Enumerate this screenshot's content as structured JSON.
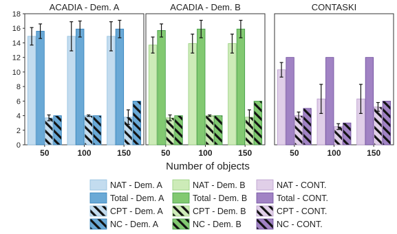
{
  "chart_data": [
    {
      "type": "bar",
      "title": "ACADIA - Dem. A",
      "categories": [
        "50",
        "100",
        "150"
      ],
      "ylim": [
        0,
        18
      ],
      "yticks": [
        0,
        2,
        4,
        6,
        8,
        10,
        12,
        14,
        16,
        18
      ],
      "series": [
        {
          "name": "NAT - Dem. A",
          "values": [
            14.9,
            14.9,
            14.9
          ],
          "err": [
            1.2,
            2.0,
            2.0
          ],
          "color": "#c3dcef",
          "edge": "#8fbfdf",
          "hatch": false
        },
        {
          "name": "Total - Dem. A",
          "values": [
            15.6,
            15.9,
            15.9
          ],
          "err": [
            1.0,
            1.1,
            1.2
          ],
          "color": "#6aa9d6",
          "edge": "#2f7fba",
          "hatch": false
        },
        {
          "name": "CPT - Dem. A",
          "values": [
            3.7,
            4.0,
            3.8
          ],
          "err": [
            0.4,
            0.1,
            1.0
          ],
          "color": "#c3dcef",
          "edge": "#8fbfdf",
          "hatch": true
        },
        {
          "name": "NC - Dem. A",
          "values": [
            4,
            4,
            6
          ],
          "err": [
            0,
            0,
            0
          ],
          "color": "#6aa9d6",
          "edge": "#2f7fba",
          "hatch": true
        }
      ]
    },
    {
      "type": "bar",
      "title": "ACADIA - Dem. B",
      "categories": [
        "50",
        "100",
        "150"
      ],
      "ylim": [
        0,
        18
      ],
      "series": [
        {
          "name": "NAT - Dem. B",
          "values": [
            13.7,
            13.9,
            13.9
          ],
          "err": [
            1.1,
            1.3,
            1.3
          ],
          "color": "#cdebb8",
          "edge": "#96cf7b",
          "hatch": false
        },
        {
          "name": "Total - Dem. B",
          "values": [
            15.7,
            15.9,
            15.9
          ],
          "err": [
            0.9,
            1.2,
            1.2
          ],
          "color": "#82c971",
          "edge": "#3f9a45",
          "hatch": false
        },
        {
          "name": "CPT - Dem. B",
          "values": [
            3.7,
            4.0,
            3.8
          ],
          "err": [
            0.4,
            0.1,
            1.0
          ],
          "color": "#cdebb8",
          "edge": "#96cf7b",
          "hatch": true
        },
        {
          "name": "NC - Dem. B",
          "values": [
            4,
            4,
            6
          ],
          "err": [
            0,
            0,
            0
          ],
          "color": "#82c971",
          "edge": "#3f9a45",
          "hatch": true
        }
      ]
    },
    {
      "type": "bar",
      "title": "CONTASKI",
      "categories": [
        "50",
        "100",
        "150"
      ],
      "ylim": [
        0,
        18
      ],
      "series": [
        {
          "name": "NAT - CONT.",
          "values": [
            10.3,
            6.3,
            6.3
          ],
          "err": [
            1.0,
            2.0,
            2.0
          ],
          "color": "#e0cfe8",
          "edge": "#b99ccc",
          "hatch": false
        },
        {
          "name": "Total - CONT.",
          "values": [
            12,
            12,
            12
          ],
          "err": [
            0,
            0,
            0
          ],
          "color": "#a183c4",
          "edge": "#6d4c9c",
          "hatch": false
        },
        {
          "name": "CPT - CONT.",
          "values": [
            4.0,
            2.5,
            5.2
          ],
          "err": [
            0.5,
            0.4,
            0.6
          ],
          "color": "#e0cfe8",
          "edge": "#b99ccc",
          "hatch": true
        },
        {
          "name": "NC - CONT.",
          "values": [
            5,
            3,
            6
          ],
          "err": [
            0,
            0,
            0
          ],
          "color": "#a183c4",
          "edge": "#6d4c9c",
          "hatch": true
        }
      ]
    }
  ],
  "xlabel": "Number of objects",
  "legend_columns": [
    [
      "NAT - Dem. A",
      "Total - Dem. A",
      "CPT - Dem. A",
      "NC - Dem. A"
    ],
    [
      "NAT - Dem. B",
      "Total - Dem. B",
      "CPT - Dem. B",
      "NC - Dem. B"
    ],
    [
      "NAT - CONT.",
      "Total - CONT.",
      "CPT - CONT.",
      "NC - CONT."
    ]
  ]
}
